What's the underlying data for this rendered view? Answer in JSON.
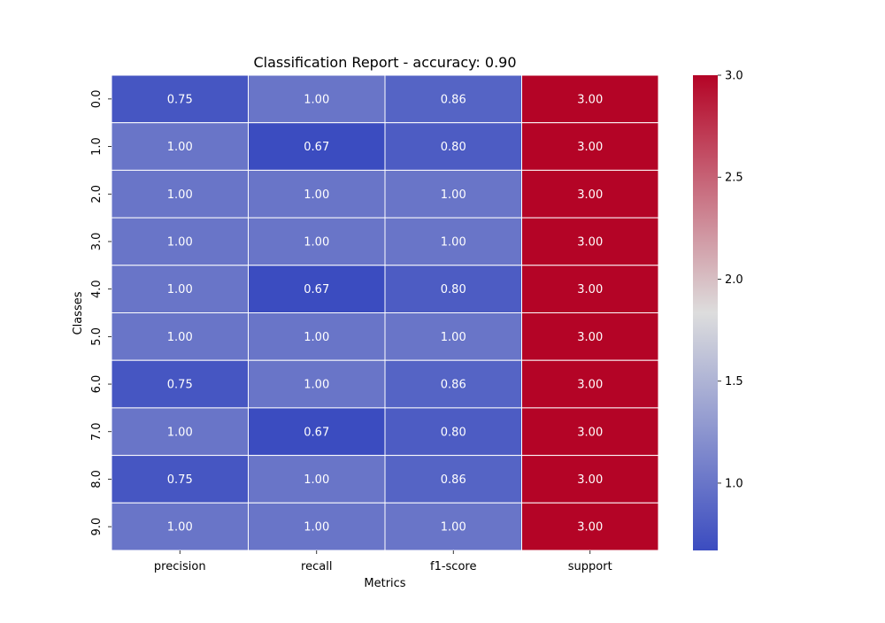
{
  "chart_data": {
    "type": "heatmap",
    "title": "Classification Report - accuracy: 0.90",
    "xlabel": "Metrics",
    "ylabel": "Classes",
    "columns": [
      "precision",
      "recall",
      "f1-score",
      "support"
    ],
    "rows": [
      "0.0",
      "1.0",
      "2.0",
      "3.0",
      "4.0",
      "5.0",
      "6.0",
      "7.0",
      "8.0",
      "9.0"
    ],
    "values": [
      [
        0.75,
        1.0,
        0.86,
        3.0
      ],
      [
        1.0,
        0.67,
        0.8,
        3.0
      ],
      [
        1.0,
        1.0,
        1.0,
        3.0
      ],
      [
        1.0,
        1.0,
        1.0,
        3.0
      ],
      [
        1.0,
        0.67,
        0.8,
        3.0
      ],
      [
        1.0,
        1.0,
        1.0,
        3.0
      ],
      [
        0.75,
        1.0,
        0.86,
        3.0
      ],
      [
        1.0,
        0.67,
        0.8,
        3.0
      ],
      [
        0.75,
        1.0,
        0.86,
        3.0
      ],
      [
        1.0,
        1.0,
        1.0,
        3.0
      ]
    ],
    "annotation_format": "2 decimals",
    "colormap": "coolwarm",
    "color_range": [
      0.67,
      3.0
    ],
    "colorbar_ticks": [
      1.0,
      1.5,
      2.0,
      2.5,
      3.0
    ],
    "colorbar_tick_labels": [
      "1.0",
      "1.5",
      "2.0",
      "2.5",
      "3.0"
    ],
    "colors": {
      "low": "#3b4cc0",
      "mid": "#dddddd",
      "high": "#b40426",
      "annotation_text": "#ffffff",
      "cell_border": "#ffffff"
    }
  }
}
